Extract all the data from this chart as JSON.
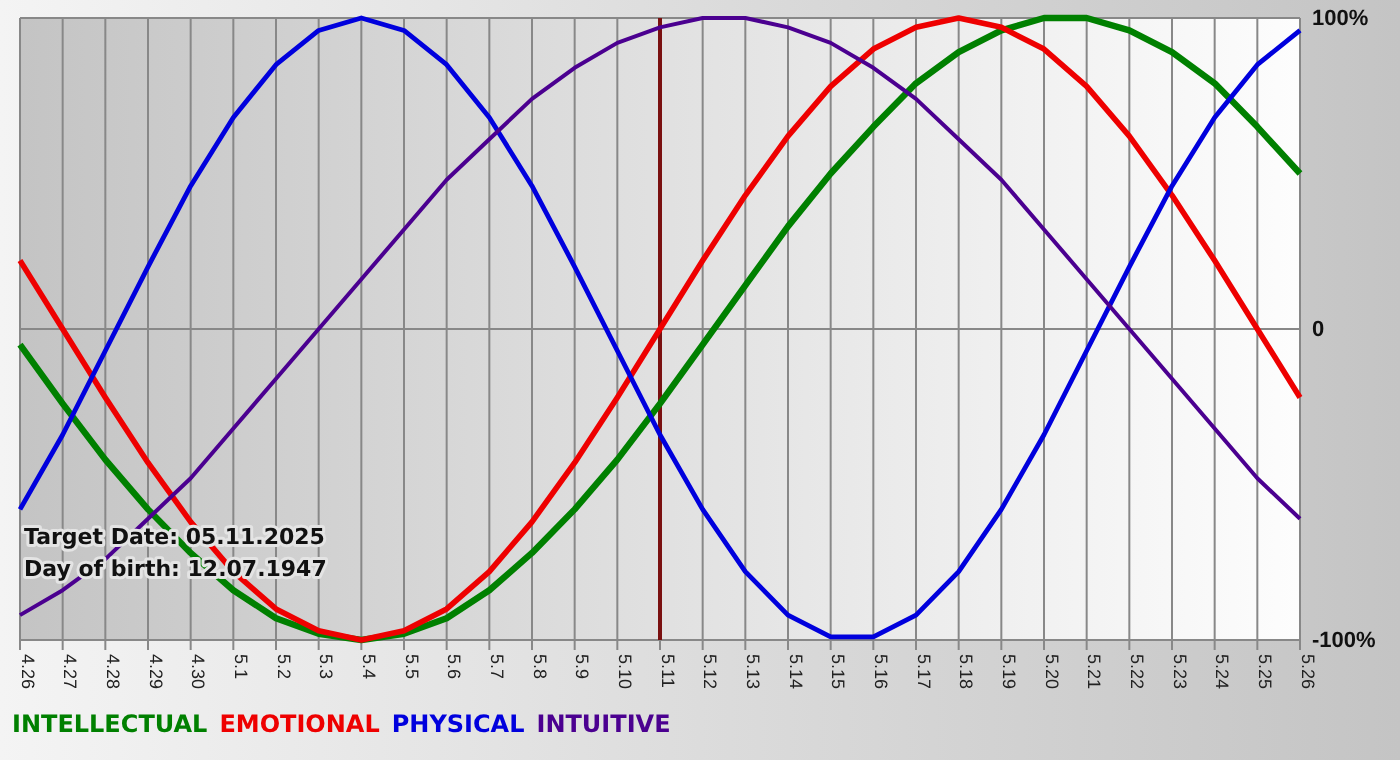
{
  "chart_data": {
    "type": "line",
    "categories": [
      "4.26",
      "4.27",
      "4.28",
      "4.29",
      "4.30",
      "5.1",
      "5.2",
      "5.3",
      "5.4",
      "5.5",
      "5.6",
      "5.7",
      "5.8",
      "5.9",
      "5.10",
      "5.11",
      "5.12",
      "5.13",
      "5.14",
      "5.15",
      "5.16",
      "5.17",
      "5.18",
      "5.19",
      "5.20",
      "5.21",
      "5.22",
      "5.23",
      "5.24",
      "5.25",
      "5.26"
    ],
    "series": [
      {
        "name": "INTELLECTUAL",
        "color": "#008000",
        "values": [
          -5,
          -24,
          -42,
          -58,
          -72,
          -84,
          -93,
          -98,
          -100,
          -98,
          -93,
          -84,
          -72,
          -58,
          -42,
          -24,
          -5,
          14,
          33,
          50,
          65,
          79,
          89,
          96,
          100,
          100,
          96,
          89,
          79,
          65,
          50
        ]
      },
      {
        "name": "EMOTIONAL",
        "color": "#ee0000",
        "values": [
          22,
          0,
          -22,
          -43,
          -62,
          -78,
          -90,
          -97,
          -100,
          -97,
          -90,
          -78,
          -62,
          -43,
          -22,
          0,
          22,
          43,
          62,
          78,
          90,
          97,
          100,
          97,
          90,
          78,
          62,
          43,
          22,
          0,
          -22
        ]
      },
      {
        "name": "PHYSICAL",
        "color": "#0000dd",
        "values": [
          -58,
          -34,
          -7,
          20,
          46,
          68,
          85,
          96,
          100,
          96,
          85,
          68,
          46,
          20,
          -7,
          -34,
          -58,
          -78,
          -92,
          -99,
          -99,
          -92,
          -78,
          -58,
          -34,
          -7,
          20,
          46,
          68,
          85,
          96
        ]
      },
      {
        "name": "INTUITIVE",
        "color": "#4b0090",
        "values": [
          -92,
          -84,
          -74,
          -61,
          -48,
          -32,
          -16,
          0,
          16,
          32,
          48,
          61,
          74,
          84,
          92,
          97,
          100,
          100,
          97,
          92,
          84,
          74,
          61,
          48,
          32,
          16,
          0,
          -16,
          -32,
          -48,
          -61
        ]
      }
    ],
    "ylim": [
      -100,
      100
    ],
    "yticks": [
      {
        "value": 100,
        "label": "100%"
      },
      0,
      {
        "value": -100,
        "label": "-100%"
      }
    ],
    "grid": true,
    "legend": "bottom left",
    "marker": "none",
    "line_style": "solid",
    "ref_lines": [
      {
        "axis": "x",
        "value": "5.11",
        "color": "#7a1010"
      }
    ],
    "annotations": [
      "Target Date: 05.11.2025",
      "Day of birth: 12.07.1947"
    ]
  }
}
